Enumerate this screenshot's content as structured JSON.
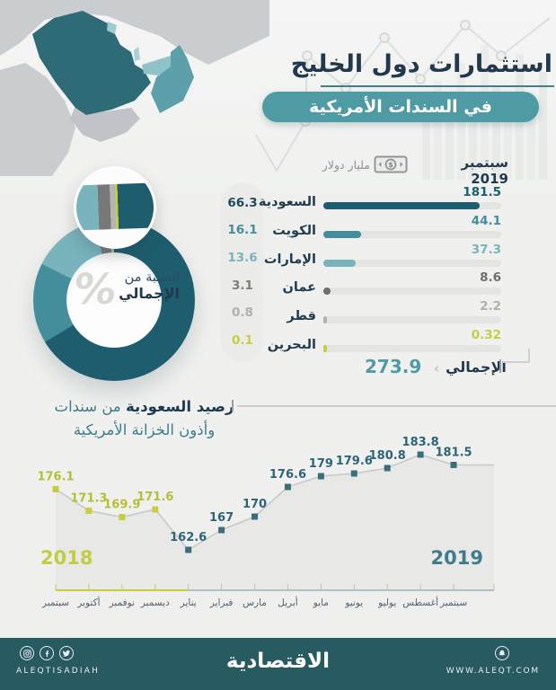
{
  "header": {
    "title": "استثمارات دول الخليج",
    "subtitle": "في السندات الأمريكية",
    "date_label": "سبتمبر 2019",
    "unit_label": "مليار دولار"
  },
  "colors": {
    "navy": "#22384d",
    "teal_accent": "#4f9ba4",
    "saudi": "#1e5d6d",
    "kuwait": "#448d9a",
    "uae": "#79b3bc",
    "oman": "#787878",
    "qatar": "#b5b5b4",
    "bahrain": "#c6cd3f",
    "yellow_2018": "#c3cc41",
    "teal_2019": "#3e7c8d",
    "footer_bg": "#285a62"
  },
  "donut": {
    "center_line1": "النسبة من",
    "center_line2": "الإجمالي",
    "percent_symbol": "%"
  },
  "bars": {
    "total_label": "الإجمالي",
    "total_value": "273.9",
    "total_chevron": "‹"
  },
  "line_section": {
    "title_bold": "رصيد السعودية",
    "title_rest": "من سندات",
    "title_line2": "وأذون الخزانة الأمريكية",
    "year_start": "2018",
    "year_end": "2019"
  },
  "footer": {
    "logo": "الاقتصادية",
    "handle": "ALEQTISADIAH",
    "website": "WWW.ALEQT.COM"
  },
  "chart_data": [
    {
      "type": "pie",
      "title": "النسبة من الإجمالي",
      "unit": "%",
      "labels": [
        "السعودية",
        "الكويت",
        "الإمارات",
        "عمان",
        "قطر",
        "البحرين"
      ],
      "values": [
        66.3,
        16.1,
        13.6,
        3.1,
        0.8,
        0.1
      ],
      "colors": [
        "#1e5d6d",
        "#448d9a",
        "#79b3bc",
        "#787878",
        "#b5b5b4",
        "#c6cd3f"
      ],
      "donut": true
    },
    {
      "type": "bar",
      "title": "استثمارات دول الخليج في السندات الأمريكية",
      "subtitle_date": "سبتمبر 2019",
      "unit": "مليار دولار",
      "orientation": "horizontal",
      "categories": [
        "السعودية",
        "الكويت",
        "الإمارات",
        "عمان",
        "قطر",
        "البحرين"
      ],
      "values": [
        181.5,
        44.1,
        37.3,
        8.6,
        2.2,
        0.32
      ],
      "value_labels": [
        "181.5",
        "44.1",
        "37.3",
        "8.6",
        "2.2",
        "0.32"
      ],
      "colors": [
        "#1e5d6d",
        "#448d9a",
        "#79b3bc",
        "#6e6e6e",
        "#b0b0b0",
        "#c6cd3f"
      ],
      "xlim": [
        0,
        207
      ],
      "total": 273.9
    },
    {
      "type": "line",
      "title": "رصيد السعودية من سندات وأذون الخزانة الأمريكية",
      "x": [
        "سبتمبر",
        "أكتوبر",
        "نوفمبر",
        "ديسمبر",
        "يناير",
        "فبراير",
        "مارس",
        "أبريل",
        "مايو",
        "يونيو",
        "يوليو",
        "أغسطس",
        "سبتمبر"
      ],
      "values": [
        176.1,
        171.3,
        169.9,
        171.6,
        162.6,
        167,
        170,
        176.6,
        179,
        179.6,
        180.8,
        183.8,
        181.5
      ],
      "value_labels": [
        "176.1",
        "171.3",
        "169.9",
        "171.6",
        "162.6",
        "167",
        "170",
        "176.6",
        "179",
        "179.6",
        "180.8",
        "183.8",
        "181.5"
      ],
      "years": [
        "2018",
        "2019"
      ],
      "points_2018": 4,
      "marker": "square",
      "area_fill": "#e8e9e7",
      "line_color": "#c7c9c7",
      "marker_color_2018": "#c6cd3f",
      "marker_color_2019": "#3a6e7c",
      "label_color_2018": "#b5bf35",
      "label_color_2019": "#2e6478",
      "ylim": [
        160,
        186
      ],
      "grid": false
    }
  ]
}
